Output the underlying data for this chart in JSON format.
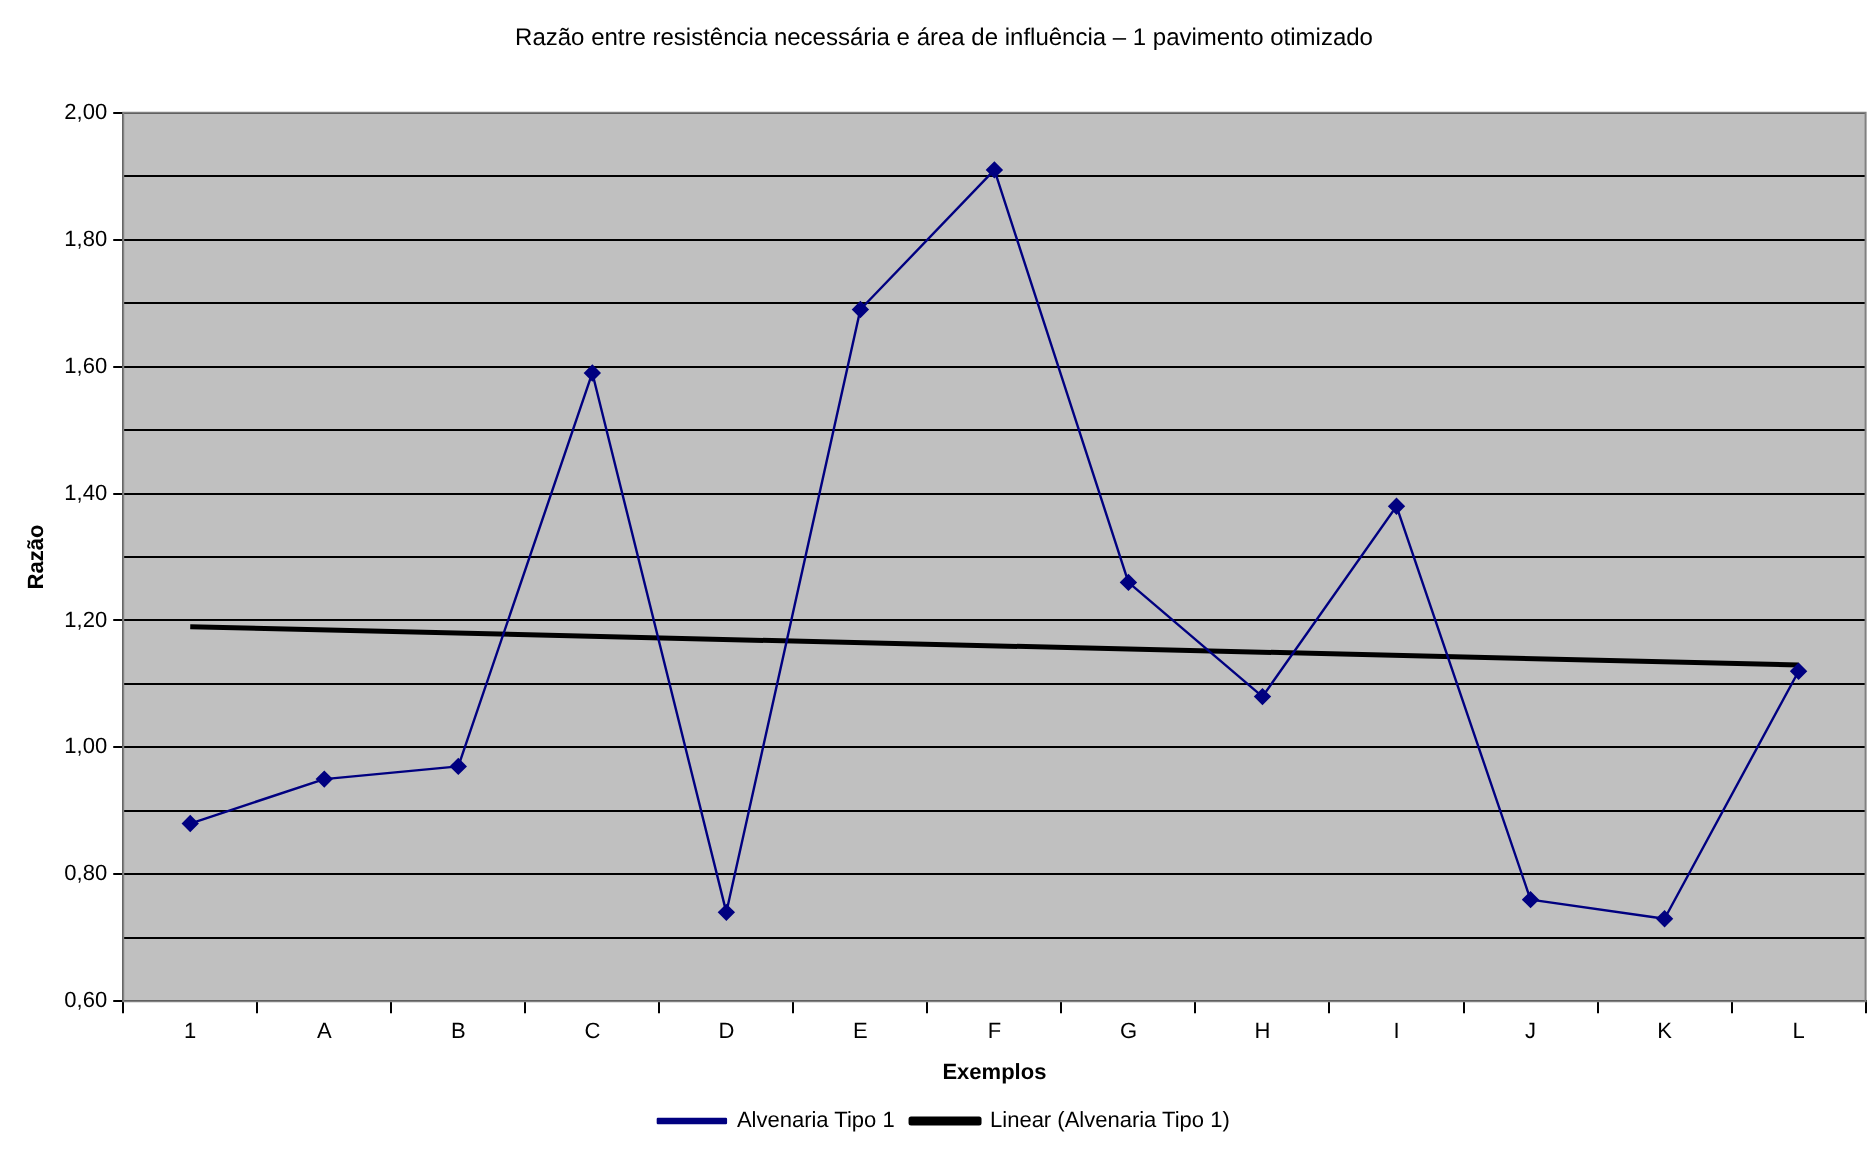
{
  "chart_data": {
    "type": "line",
    "title": "Razão entre resistência necessária e área de influência – 1 pavimento otimizado",
    "xlabel": "Exemplos",
    "ylabel": "Razão",
    "categories": [
      "1",
      "A",
      "B",
      "C",
      "D",
      "E",
      "F",
      "G",
      "H",
      "I",
      "J",
      "K",
      "L"
    ],
    "series": [
      {
        "name": "Alvenaria Tipo 1",
        "color": "#000080",
        "marker": "diamond",
        "values": [
          0.88,
          0.95,
          0.97,
          1.59,
          0.74,
          1.69,
          1.91,
          1.26,
          1.08,
          1.38,
          0.76,
          0.73,
          1.12
        ]
      },
      {
        "name": "Linear (Alvenaria Tipo 1)",
        "color": "#000000",
        "marker": "none",
        "x": [
          "1",
          "L"
        ],
        "values": [
          1.19,
          1.13
        ]
      }
    ],
    "ylim": [
      0.6,
      2.0
    ],
    "yticks": [
      {
        "value": 0.6,
        "label": "0,60"
      },
      {
        "value": 0.7,
        "label": null
      },
      {
        "value": 0.8,
        "label": "0,80"
      },
      {
        "value": 0.9,
        "label": null
      },
      {
        "value": 1.0,
        "label": "1,00"
      },
      {
        "value": 1.1,
        "label": null
      },
      {
        "value": 1.2,
        "label": "1,20"
      },
      {
        "value": 1.3,
        "label": null
      },
      {
        "value": 1.4,
        "label": "1,40"
      },
      {
        "value": 1.5,
        "label": null
      },
      {
        "value": 1.6,
        "label": "1,60"
      },
      {
        "value": 1.7,
        "label": null
      },
      {
        "value": 1.8,
        "label": "1,80"
      },
      {
        "value": 1.9,
        "label": null
      },
      {
        "value": 2.0,
        "label": "2,00"
      }
    ],
    "grid": "y",
    "legend": "bottom",
    "line_style": "solid"
  }
}
